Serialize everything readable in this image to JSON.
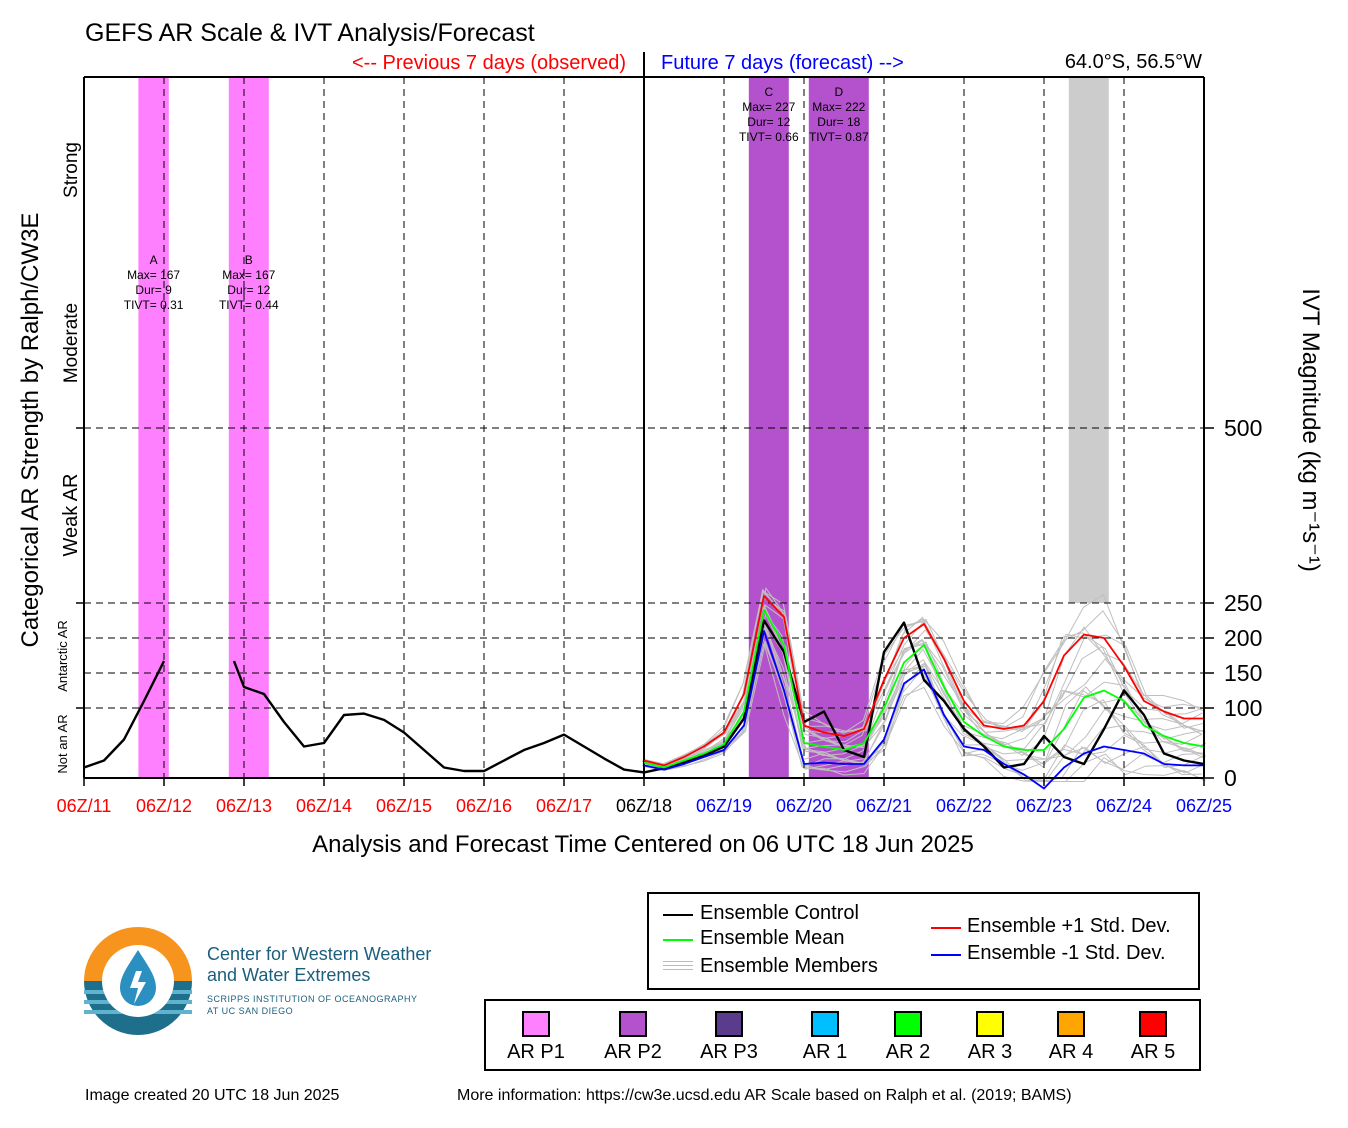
{
  "title": "GEFS AR Scale & IVT Analysis/Forecast",
  "location": "64.0°S, 56.5°W",
  "previous_label": "<-- Previous 7 days (observed)",
  "future_label": "Future 7 days (forecast) -->",
  "left_axis_title": "Categorical AR Strength by Ralph/CW3E",
  "right_axis_title": "IVT Magnitude (kg m⁻¹s⁻¹)",
  "x_axis_title": "Analysis and Forecast Time Centered on 06 UTC 18 Jun 2025",
  "legend": {
    "control": "Ensemble Control",
    "mean": "Ensemble Mean",
    "members": "Ensemble Members",
    "plus_std": "Ensemble +1 Std. Dev.",
    "minus_std": "Ensemble -1 Std. Dev."
  },
  "categories": [
    {
      "label": "AR P1",
      "color": "#ff80ff"
    },
    {
      "label": "AR P2",
      "color": "#b452cd"
    },
    {
      "label": "AR P3",
      "color": "#5b3c8c"
    },
    {
      "label": "AR 1",
      "color": "#00bfff"
    },
    {
      "label": "AR 2",
      "color": "#00ff00"
    },
    {
      "label": "AR 3",
      "color": "#ffff00"
    },
    {
      "label": "AR 4",
      "color": "#ffa500"
    },
    {
      "label": "AR 5",
      "color": "#ff0000"
    }
  ],
  "logo": {
    "line1": "Center for Western Weather",
    "line2": "and Water Extremes",
    "line3": "SCRIPPS INSTITUTION OF OCEANOGRAPHY",
    "line4": "AT UC SAN DIEGO"
  },
  "footer": {
    "created": "Image created 20 UTC 18 Jun 2025",
    "info": "More information: https://cw3e.ucsd.edu AR Scale based on Ralph et al. (2019; BAMS)"
  },
  "chart_data": {
    "type": "line",
    "x_tick_labels": [
      "06Z/11",
      "06Z/12",
      "06Z/13",
      "06Z/14",
      "06Z/15",
      "06Z/16",
      "06Z/17",
      "06Z/18",
      "06Z/19",
      "06Z/20",
      "06Z/21",
      "06Z/22",
      "06Z/23",
      "06Z/24",
      "06Z/25"
    ],
    "x_tick_colors": [
      "#ff0000",
      "#ff0000",
      "#ff0000",
      "#ff0000",
      "#ff0000",
      "#ff0000",
      "#ff0000",
      "#000000",
      "#0000ff",
      "#0000ff",
      "#0000ff",
      "#0000ff",
      "#0000ff",
      "#0000ff",
      "#0000ff"
    ],
    "xlim_days": [
      0,
      14
    ],
    "ylim": [
      0,
      1000
    ],
    "right_ticks": [
      0,
      100,
      150,
      200,
      250,
      500
    ],
    "category_bands": [
      {
        "label": "Not an AR",
        "from": 0,
        "to": 100
      },
      {
        "label": "Antarctic AR",
        "from": 100,
        "to": 250
      },
      {
        "label": "Weak AR",
        "from": 250,
        "to": 500
      },
      {
        "label": "Moderate",
        "from": 500,
        "to": 750
      },
      {
        "label": "Strong",
        "from": 750,
        "to": 1000
      }
    ],
    "ar_events": [
      {
        "id": "A",
        "start": 0.68,
        "end": 1.06,
        "color": "#ff80ff",
        "max": "167",
        "dur": "9",
        "tivt": "0.31"
      },
      {
        "id": "B",
        "start": 1.81,
        "end": 2.31,
        "color": "#ff80ff",
        "max": "167",
        "dur": "12",
        "tivt": "0.44"
      },
      {
        "id": "C",
        "start": 8.31,
        "end": 8.81,
        "color": "#b452cd",
        "max": "227",
        "dur": "12",
        "tivt": "0.66"
      },
      {
        "id": "D",
        "start": 9.06,
        "end": 9.81,
        "color": "#b452cd",
        "max": "222",
        "dur": "18",
        "tivt": "0.87"
      }
    ],
    "gray_bands": [
      {
        "start": 12.31,
        "end": 12.81
      }
    ],
    "annotation_label_max": "Max=",
    "annotation_label_dur": "Dur=",
    "annotation_label_tivt": "TIVT=",
    "series": [
      {
        "name": "Ensemble Control",
        "color": "#000000",
        "segments": [
          [
            [
              0,
              15
            ],
            [
              0.25,
              25
            ],
            [
              0.5,
              55
            ],
            [
              0.75,
              110
            ],
            [
              1.0,
              167
            ]
          ],
          [
            [
              1.875,
              167
            ],
            [
              2.0,
              130
            ],
            [
              2.25,
              120
            ],
            [
              2.5,
              80
            ],
            [
              2.75,
              45
            ],
            [
              3.0,
              50
            ],
            [
              3.25,
              90
            ],
            [
              3.5,
              92
            ],
            [
              3.75,
              83
            ],
            [
              4.0,
              65
            ],
            [
              4.25,
              40
            ],
            [
              4.5,
              15
            ],
            [
              4.75,
              10
            ],
            [
              5.0,
              10
            ],
            [
              5.25,
              25
            ],
            [
              5.5,
              40
            ],
            [
              5.75,
              50
            ],
            [
              6.0,
              62
            ],
            [
              6.25,
              45
            ],
            [
              6.5,
              28
            ],
            [
              6.75,
              12
            ],
            [
              7.0,
              8
            ],
            [
              7.25,
              14
            ],
            [
              7.5,
              22
            ],
            [
              7.75,
              32
            ],
            [
              8.0,
              45
            ],
            [
              8.25,
              85
            ],
            [
              8.5,
              225
            ],
            [
              8.75,
              180
            ],
            [
              9.0,
              80
            ],
            [
              9.25,
              95
            ],
            [
              9.5,
              40
            ],
            [
              9.75,
              30
            ],
            [
              10.0,
              180
            ],
            [
              10.25,
              222
            ],
            [
              10.5,
              140
            ],
            [
              10.75,
              110
            ],
            [
              11.0,
              70
            ],
            [
              11.25,
              45
            ],
            [
              11.5,
              15
            ],
            [
              11.75,
              20
            ],
            [
              12.0,
              60
            ],
            [
              12.25,
              30
            ],
            [
              12.5,
              20
            ],
            [
              12.75,
              70
            ],
            [
              13.0,
              125
            ],
            [
              13.25,
              90
            ],
            [
              13.5,
              35
            ],
            [
              13.75,
              25
            ],
            [
              14.0,
              20
            ]
          ]
        ]
      },
      {
        "name": "Ensemble Mean",
        "color": "#00ff00",
        "segments": [
          [
            [
              7.0,
              22
            ],
            [
              7.25,
              15
            ],
            [
              7.5,
              25
            ],
            [
              7.75,
              35
            ],
            [
              8.0,
              48
            ],
            [
              8.25,
              95
            ],
            [
              8.5,
              240
            ],
            [
              8.75,
              190
            ],
            [
              9.0,
              50
            ],
            [
              9.25,
              45
            ],
            [
              9.5,
              40
            ],
            [
              9.75,
              50
            ],
            [
              10.0,
              100
            ],
            [
              10.25,
              165
            ],
            [
              10.5,
              190
            ],
            [
              10.75,
              130
            ],
            [
              11.0,
              80
            ],
            [
              11.25,
              60
            ],
            [
              11.5,
              45
            ],
            [
              11.75,
              40
            ],
            [
              12.0,
              40
            ],
            [
              12.25,
              70
            ],
            [
              12.5,
              115
            ],
            [
              12.75,
              125
            ],
            [
              13.0,
              110
            ],
            [
              13.25,
              75
            ],
            [
              13.5,
              60
            ],
            [
              13.75,
              50
            ],
            [
              14.0,
              45
            ]
          ]
        ]
      },
      {
        "name": "Ensemble +1 Std. Dev.",
        "color": "#ff0000",
        "segments": [
          [
            [
              7.0,
              25
            ],
            [
              7.25,
              18
            ],
            [
              7.5,
              30
            ],
            [
              7.75,
              45
            ],
            [
              8.0,
              65
            ],
            [
              8.25,
              120
            ],
            [
              8.5,
              260
            ],
            [
              8.75,
              230
            ],
            [
              9.0,
              75
            ],
            [
              9.25,
              65
            ],
            [
              9.5,
              60
            ],
            [
              9.75,
              70
            ],
            [
              10.0,
              140
            ],
            [
              10.25,
              200
            ],
            [
              10.5,
              220
            ],
            [
              10.75,
              170
            ],
            [
              11.0,
              110
            ],
            [
              11.25,
              75
            ],
            [
              11.5,
              70
            ],
            [
              11.75,
              75
            ],
            [
              12.0,
              110
            ],
            [
              12.25,
              175
            ],
            [
              12.5,
              205
            ],
            [
              12.75,
              200
            ],
            [
              13.0,
              160
            ],
            [
              13.25,
              110
            ],
            [
              13.5,
              95
            ],
            [
              13.75,
              85
            ],
            [
              14.0,
              85
            ]
          ]
        ]
      },
      {
        "name": "Ensemble -1 Std. Dev.",
        "color": "#0000ff",
        "segments": [
          [
            [
              7.0,
              18
            ],
            [
              7.25,
              12
            ],
            [
              7.5,
              20
            ],
            [
              7.75,
              30
            ],
            [
              8.0,
              40
            ],
            [
              8.25,
              75
            ],
            [
              8.5,
              210
            ],
            [
              8.75,
              125
            ],
            [
              9.0,
              20
            ],
            [
              9.25,
              22
            ],
            [
              9.5,
              20
            ],
            [
              9.75,
              20
            ],
            [
              10.0,
              55
            ],
            [
              10.25,
              135
            ],
            [
              10.5,
              155
            ],
            [
              10.75,
              90
            ],
            [
              11.0,
              45
            ],
            [
              11.25,
              40
            ],
            [
              11.5,
              20
            ],
            [
              11.75,
              5
            ],
            [
              12.0,
              -15
            ],
            [
              12.25,
              15
            ],
            [
              12.5,
              35
            ],
            [
              12.75,
              45
            ],
            [
              13.0,
              40
            ],
            [
              13.25,
              35
            ],
            [
              13.5,
              20
            ],
            [
              13.75,
              18
            ],
            [
              14.0,
              18
            ]
          ]
        ]
      }
    ]
  }
}
